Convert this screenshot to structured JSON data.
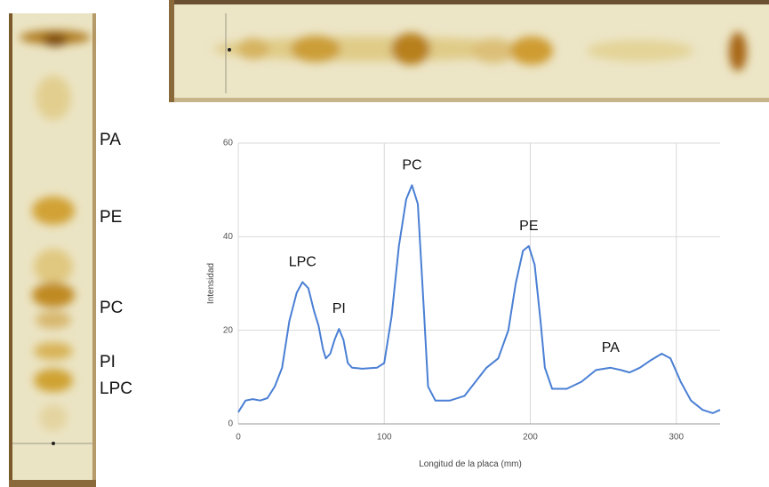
{
  "plate_labels": [
    "PA",
    "PE",
    "PC",
    "PI",
    "LPC"
  ],
  "chart_data": {
    "type": "line",
    "x_label": "Longitud de la placa (mm)",
    "y_label": "Intensidad",
    "x": [
      0,
      5,
      10,
      15,
      20,
      25,
      30,
      35,
      40,
      44,
      48,
      52,
      55,
      58,
      60,
      63,
      66,
      69,
      72,
      75,
      78,
      85,
      95,
      100,
      105,
      110,
      115,
      119,
      123,
      127,
      130,
      135,
      145,
      155,
      165,
      170,
      178,
      185,
      190,
      195,
      199,
      203,
      207,
      210,
      215,
      225,
      235,
      245,
      255,
      262,
      268,
      275,
      282,
      290,
      296,
      303,
      310,
      318,
      325,
      330
    ],
    "values": [
      2.5,
      5,
      5.3,
      5,
      5.5,
      8,
      12,
      22,
      28,
      30.3,
      29,
      24,
      21,
      16,
      14,
      15,
      18,
      20.3,
      18,
      13,
      12,
      11.8,
      12,
      13,
      23,
      38,
      48,
      51,
      47,
      25,
      8,
      5,
      5,
      6,
      10,
      12,
      14,
      20,
      30,
      37,
      38,
      34,
      22,
      12,
      7.5,
      7.5,
      9,
      11.5,
      12,
      11.5,
      11,
      12,
      13.5,
      15,
      14,
      9,
      5,
      3,
      2.3,
      3
    ],
    "color": "#4a7fd4",
    "xlim": [
      0,
      330
    ],
    "ylim": [
      0,
      60
    ],
    "xticks": [
      0,
      100,
      200,
      300
    ],
    "yticks": [
      0,
      20,
      40,
      60
    ],
    "grid": true,
    "annotations": [
      {
        "text": "LPC",
        "x": 44
      },
      {
        "text": "PI",
        "x": 69
      },
      {
        "text": "PC",
        "x": 119
      },
      {
        "text": "PE",
        "x": 199
      },
      {
        "text": "PA",
        "x": 255
      }
    ]
  }
}
